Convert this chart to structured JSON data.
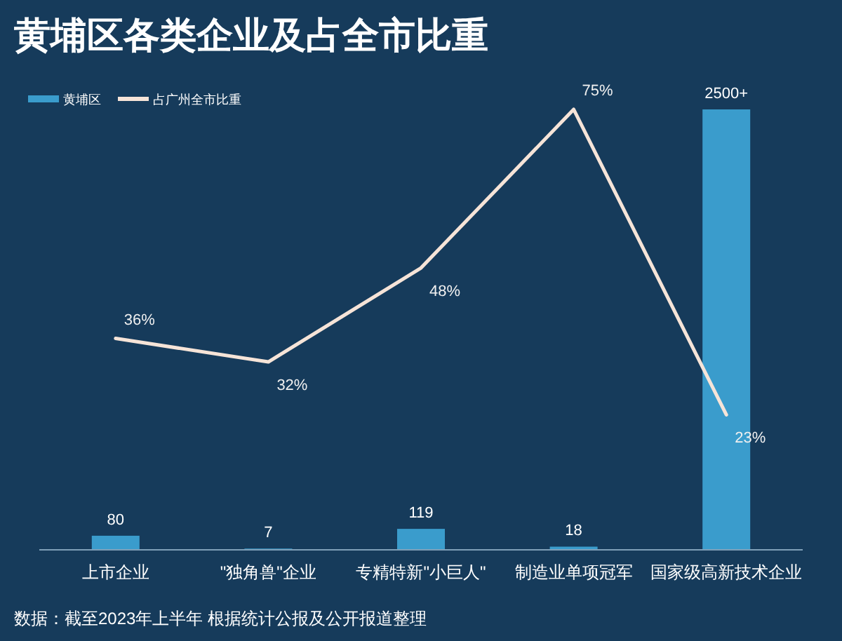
{
  "chart_data": {
    "type": "bar",
    "title": "黄埔区各类企业及占全市比重",
    "categories": [
      "上市企业",
      "\"独角兽\"企业",
      "专精特新\"小巨人\"",
      "制造业单项冠军",
      "国家级高新技术企业"
    ],
    "legend": "top left",
    "series": [
      {
        "name": "黄埔区",
        "color": "#3a9ccc",
        "values": [
          80,
          7,
          119,
          18,
          2500
        ],
        "value_labels": [
          "80",
          "7",
          "119",
          "18",
          "2500+"
        ]
      },
      {
        "name": "占广州全市比重",
        "type": "line",
        "axis": "y2",
        "color": "#f6e4d8",
        "values": [
          36,
          32,
          48,
          75,
          23
        ],
        "value_labels": [
          "36%",
          "32%",
          "48%",
          "75%",
          "23%"
        ]
      }
    ],
    "annotations": [
      "数据：截至2023年上半年 根据统计公报及公开报道整理"
    ]
  }
}
